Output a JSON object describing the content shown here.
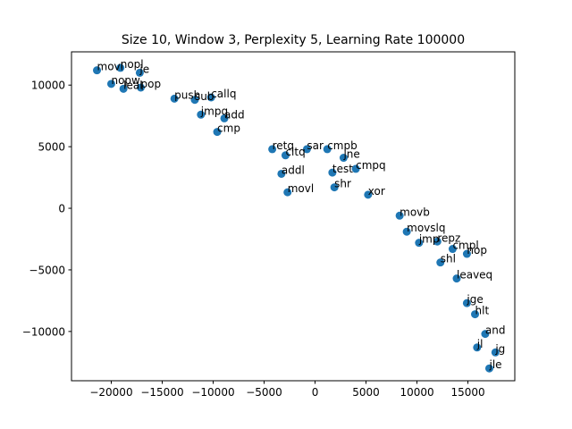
{
  "chart_data": {
    "type": "scatter",
    "title": "Size 10, Window 3, Perplexity 5, Learning Rate 100000",
    "xlabel": "",
    "ylabel": "",
    "xlim": [
      -23900,
      19600
    ],
    "ylim": [
      -14000,
      12700
    ],
    "xticks": [
      -20000,
      -15000,
      -10000,
      -5000,
      0,
      5000,
      10000,
      15000
    ],
    "xtick_labels": [
      "−20000",
      "−15000",
      "−10000",
      "−5000",
      "0",
      "5000",
      "10000",
      "15000"
    ],
    "yticks": [
      -10000,
      -5000,
      0,
      5000,
      10000
    ],
    "ytick_labels": [
      "−10000",
      "−5000",
      "0",
      "5000",
      "10000"
    ],
    "grid": false,
    "marker_color": "#1f77b4",
    "points": [
      {
        "label": "movl",
        "x": -21400,
        "y": 11200
      },
      {
        "label": "nopl",
        "x": -19100,
        "y": 11400
      },
      {
        "label": "je",
        "x": -17200,
        "y": 11000
      },
      {
        "label": "nopw",
        "x": -20000,
        "y": 10100
      },
      {
        "label": "leal",
        "x": -18800,
        "y": 9700
      },
      {
        "label": "pop",
        "x": -17100,
        "y": 9800
      },
      {
        "label": "push",
        "x": -13800,
        "y": 8900
      },
      {
        "label": "sub",
        "x": -11800,
        "y": 8800
      },
      {
        "label": "callq",
        "x": -10200,
        "y": 9000
      },
      {
        "label": "jmpq",
        "x": -11200,
        "y": 7600
      },
      {
        "label": "add",
        "x": -8900,
        "y": 7300
      },
      {
        "label": "cmp",
        "x": -9600,
        "y": 6200
      },
      {
        "label": "retq",
        "x": -4200,
        "y": 4800
      },
      {
        "label": "cltq",
        "x": -2900,
        "y": 4300
      },
      {
        "label": "sar",
        "x": -800,
        "y": 4800
      },
      {
        "label": "cmpb",
        "x": 1200,
        "y": 4800
      },
      {
        "label": "jne",
        "x": 2800,
        "y": 4100
      },
      {
        "label": "addl",
        "x": -3300,
        "y": 2800
      },
      {
        "label": "test",
        "x": 1700,
        "y": 2900
      },
      {
        "label": "cmpq",
        "x": 4000,
        "y": 3200
      },
      {
        "label": "movl",
        "x": -2700,
        "y": 1300
      },
      {
        "label": "shr",
        "x": 1900,
        "y": 1700
      },
      {
        "label": "xor",
        "x": 5200,
        "y": 1100
      },
      {
        "label": "movb",
        "x": 8300,
        "y": -600
      },
      {
        "label": "movslq",
        "x": 9000,
        "y": -1900
      },
      {
        "label": "jmp",
        "x": 10200,
        "y": -2800
      },
      {
        "label": "repz",
        "x": 12000,
        "y": -2700
      },
      {
        "label": "cmpl",
        "x": 13500,
        "y": -3300
      },
      {
        "label": "nop",
        "x": 14900,
        "y": -3700
      },
      {
        "label": "shl",
        "x": 12300,
        "y": -4400
      },
      {
        "label": "leaveq",
        "x": 13900,
        "y": -5700
      },
      {
        "label": "jge",
        "x": 14900,
        "y": -7700
      },
      {
        "label": "hlt",
        "x": 15700,
        "y": -8600
      },
      {
        "label": "and",
        "x": 16700,
        "y": -10200
      },
      {
        "label": "jl",
        "x": 15900,
        "y": -11300
      },
      {
        "label": "jg",
        "x": 17700,
        "y": -11700
      },
      {
        "label": "jle",
        "x": 17100,
        "y": -13000
      }
    ]
  }
}
